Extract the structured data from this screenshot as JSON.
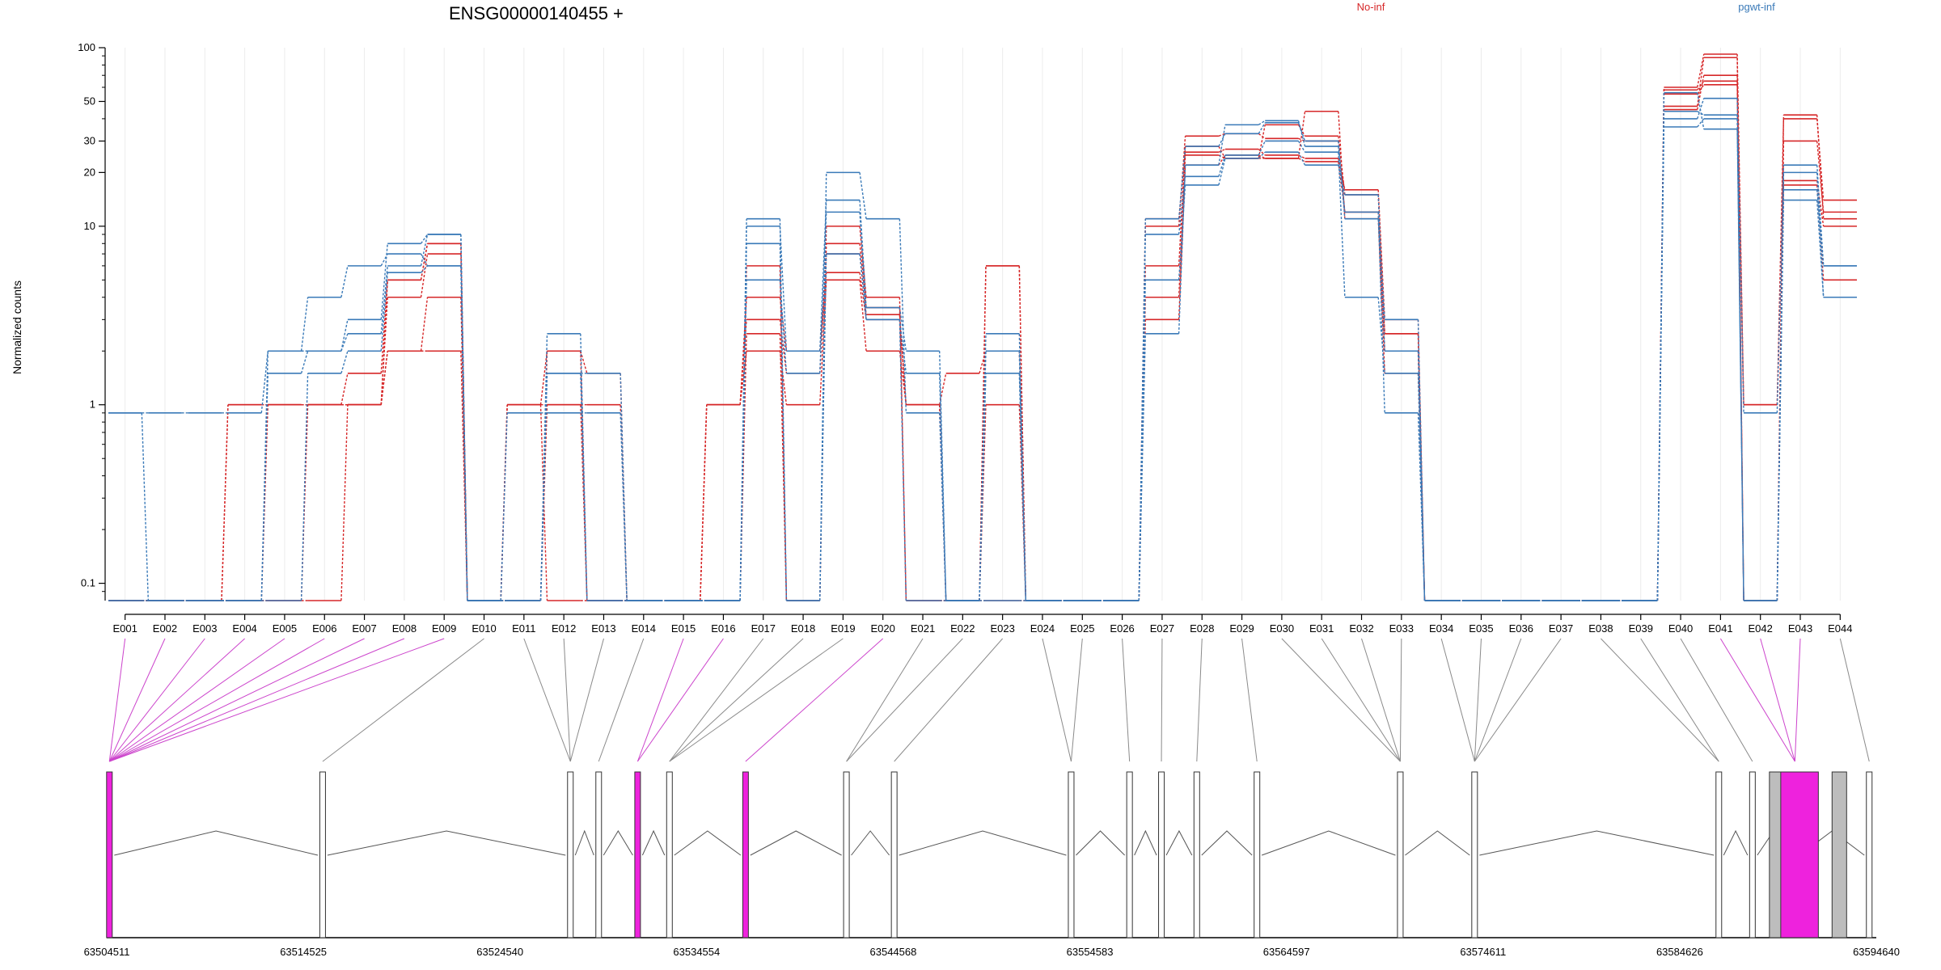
{
  "chart_data": {
    "type": "line",
    "title": "ENSG00000140455 +",
    "ylabel": "Normalized counts",
    "y_scale": "log",
    "ylim": [
      0.08,
      100
    ],
    "y_ticks": [
      {
        "value": 100,
        "label": "100"
      },
      {
        "value": 50,
        "label": "50"
      },
      {
        "value": 30,
        "label": "30"
      },
      {
        "value": 20,
        "label": "20"
      },
      {
        "value": 10,
        "label": "10"
      },
      {
        "value": 1,
        "label": "1"
      },
      {
        "value": 0.1,
        "label": "0.1"
      }
    ],
    "grid": "vertical-light",
    "categories": [
      "E001",
      "E002",
      "E003",
      "E004",
      "E005",
      "E006",
      "E007",
      "E008",
      "E009",
      "E010",
      "E011",
      "E012",
      "E013",
      "E014",
      "E015",
      "E016",
      "E017",
      "E018",
      "E019",
      "E020",
      "E021",
      "E022",
      "E023",
      "E024",
      "E025",
      "E026",
      "E027",
      "E028",
      "E029",
      "E030",
      "E031",
      "E032",
      "E033",
      "E034",
      "E035",
      "E036",
      "E037",
      "E038",
      "E039",
      "E040",
      "E041",
      "E042",
      "E043",
      "E044"
    ],
    "groups": [
      {
        "label": "No-inf",
        "color": "#d62728"
      },
      {
        "label": "pgwt-inf",
        "color": "#3a7ab8"
      }
    ],
    "series": [
      {
        "group": 0,
        "values": [
          0.08,
          0.08,
          0.08,
          1,
          1,
          1,
          1,
          2,
          4,
          0.08,
          1,
          2,
          1.5,
          0.08,
          0.08,
          1,
          3,
          1.5,
          7,
          3.2,
          1,
          1.5,
          2,
          0.08,
          0.08,
          0.08,
          10,
          32,
          33,
          31,
          30,
          12,
          2.5,
          0.08,
          0.08,
          0.08,
          0.08,
          0.08,
          0.08,
          58,
          65,
          1,
          40,
          14
        ]
      },
      {
        "group": 0,
        "values": [
          0.08,
          0.08,
          0.08,
          1,
          1,
          1,
          1.5,
          5,
          8,
          0.08,
          1,
          1,
          1,
          0.08,
          0.08,
          1,
          2,
          1,
          5,
          2,
          1,
          0.08,
          6,
          0.08,
          0.08,
          0.08,
          11,
          26,
          27,
          25,
          24,
          16,
          3,
          0.08,
          0.08,
          0.08,
          0.08,
          0.08,
          0.08,
          47,
          88,
          0.08,
          30,
          12
        ]
      },
      {
        "group": 0,
        "values": [
          0.08,
          0.08,
          0.08,
          0.08,
          1,
          1,
          1,
          2,
          2,
          0.08,
          0.08,
          1,
          0.08,
          0.08,
          0.08,
          1,
          4,
          2,
          5.5,
          3,
          1,
          0.08,
          1,
          0.08,
          0.08,
          0.08,
          4,
          25,
          24,
          24,
          23,
          12,
          2,
          0.08,
          0.08,
          0.08,
          0.08,
          0.08,
          0.08,
          60,
          92,
          1,
          17,
          5
        ]
      },
      {
        "group": 0,
        "values": [
          0.08,
          0.08,
          0.08,
          0.08,
          0.08,
          0.08,
          1,
          4,
          7,
          0.08,
          1,
          0.08,
          0.08,
          0.08,
          0.08,
          0.08,
          2.5,
          0.08,
          8,
          3.5,
          0.08,
          0.08,
          6,
          0.08,
          0.08,
          0.08,
          3,
          22,
          25,
          24,
          44,
          11,
          1.5,
          0.08,
          0.08,
          0.08,
          0.08,
          0.08,
          0.08,
          45,
          70,
          0.08,
          18,
          10
        ]
      },
      {
        "group": 0,
        "values": [
          0.08,
          0.08,
          0.08,
          0.08,
          0.08,
          1,
          1,
          5,
          8,
          0.08,
          0.08,
          2,
          0.08,
          0.08,
          0.08,
          0.08,
          6,
          0.08,
          10,
          4,
          0.08,
          0.08,
          0.08,
          0.08,
          0.08,
          0.08,
          6,
          28,
          24,
          37,
          32,
          15,
          2.5,
          0.08,
          0.08,
          0.08,
          0.08,
          0.08,
          0.08,
          55,
          62,
          0.08,
          42,
          11
        ]
      },
      {
        "group": 1,
        "values": [
          0.9,
          0.9,
          0.9,
          0.9,
          2,
          2,
          3,
          8,
          9,
          0.08,
          0.9,
          0.9,
          0.9,
          0.08,
          0.08,
          0.08,
          11,
          0.08,
          20,
          11,
          0.9,
          0.08,
          0.08,
          0.08,
          0.08,
          0.08,
          2.5,
          22,
          37,
          39,
          28,
          12,
          0.9,
          0.08,
          0.08,
          0.08,
          0.08,
          0.08,
          0.08,
          40,
          52,
          0.9,
          22,
          6
        ]
      },
      {
        "group": 1,
        "values": [
          0.9,
          0.08,
          0.08,
          0.08,
          2,
          4,
          6,
          7,
          6,
          0.08,
          0.08,
          2.5,
          0.08,
          0.08,
          0.08,
          0.08,
          10,
          2,
          14,
          3.5,
          2,
          0.08,
          2.5,
          0.08,
          0.08,
          0.08,
          11,
          28,
          33,
          38,
          30,
          11,
          3,
          0.08,
          0.08,
          0.08,
          0.08,
          0.08,
          0.08,
          44,
          42,
          0.08,
          20,
          4
        ]
      },
      {
        "group": 1,
        "values": [
          0.08,
          0.08,
          0.08,
          0.08,
          1.5,
          2,
          2.5,
          6,
          9,
          0.08,
          0.08,
          1.5,
          1.5,
          0.08,
          0.08,
          0.08,
          5,
          1.5,
          12,
          3,
          1.5,
          0.08,
          2,
          0.08,
          0.08,
          0.08,
          5,
          17,
          24,
          26,
          22,
          15,
          2,
          0.08,
          0.08,
          0.08,
          0.08,
          0.08,
          0.08,
          36,
          40,
          0.08,
          16,
          6
        ]
      },
      {
        "group": 1,
        "values": [
          0.08,
          0.08,
          0.08,
          0.08,
          0.08,
          1.5,
          2,
          5.5,
          6,
          0.08,
          0.08,
          1.5,
          0.08,
          0.08,
          0.08,
          0.08,
          8,
          0.08,
          7,
          3,
          0.08,
          0.08,
          1.5,
          0.08,
          0.08,
          0.08,
          9,
          19,
          25,
          30,
          26,
          4,
          1.5,
          0.08,
          0.08,
          0.08,
          0.08,
          0.08,
          0.08,
          56,
          35,
          0.08,
          14,
          4
        ]
      }
    ],
    "exon_to_coord": [
      1,
      1,
      1,
      1,
      1,
      1,
      1,
      1,
      1,
      2,
      3,
      3,
      3,
      4,
      5,
      5,
      6,
      6,
      6,
      7,
      8,
      8,
      9,
      10,
      10,
      11,
      12,
      13,
      14,
      15,
      15,
      15,
      15,
      16,
      16,
      16,
      16,
      17,
      17,
      18,
      19,
      19,
      19,
      20
    ],
    "gene_model": {
      "coord_labels": [
        "63504511",
        "63514525",
        "63524540",
        "63534554",
        "63544568",
        "63554583",
        "63564597",
        "63574611",
        "63584626",
        "63594640"
      ],
      "exon_blocks": [
        {
          "pos": 0.0015,
          "highlight": true
        },
        {
          "pos": 0.122,
          "highlight": false
        },
        {
          "pos": 0.262,
          "highlight": false
        },
        {
          "pos": 0.278,
          "highlight": false
        },
        {
          "pos": 0.3,
          "highlight": true
        },
        {
          "pos": 0.318,
          "highlight": false
        },
        {
          "pos": 0.361,
          "highlight": true
        },
        {
          "pos": 0.418,
          "highlight": false
        },
        {
          "pos": 0.445,
          "highlight": false
        },
        {
          "pos": 0.545,
          "highlight": false
        },
        {
          "pos": 0.578,
          "highlight": false
        },
        {
          "pos": 0.596,
          "highlight": false
        },
        {
          "pos": 0.616,
          "highlight": false
        },
        {
          "pos": 0.65,
          "highlight": false
        },
        {
          "pos": 0.731,
          "highlight": false
        },
        {
          "pos": 0.773,
          "highlight": false
        },
        {
          "pos": 0.911,
          "highlight": false
        },
        {
          "pos": 0.93,
          "highlight": false
        },
        {
          "pos": 0.954,
          "highlight": true
        },
        {
          "pos": 0.996,
          "highlight": false
        }
      ],
      "highlight_color": "#ee22dd",
      "block_color": "#bdbdbd"
    }
  }
}
